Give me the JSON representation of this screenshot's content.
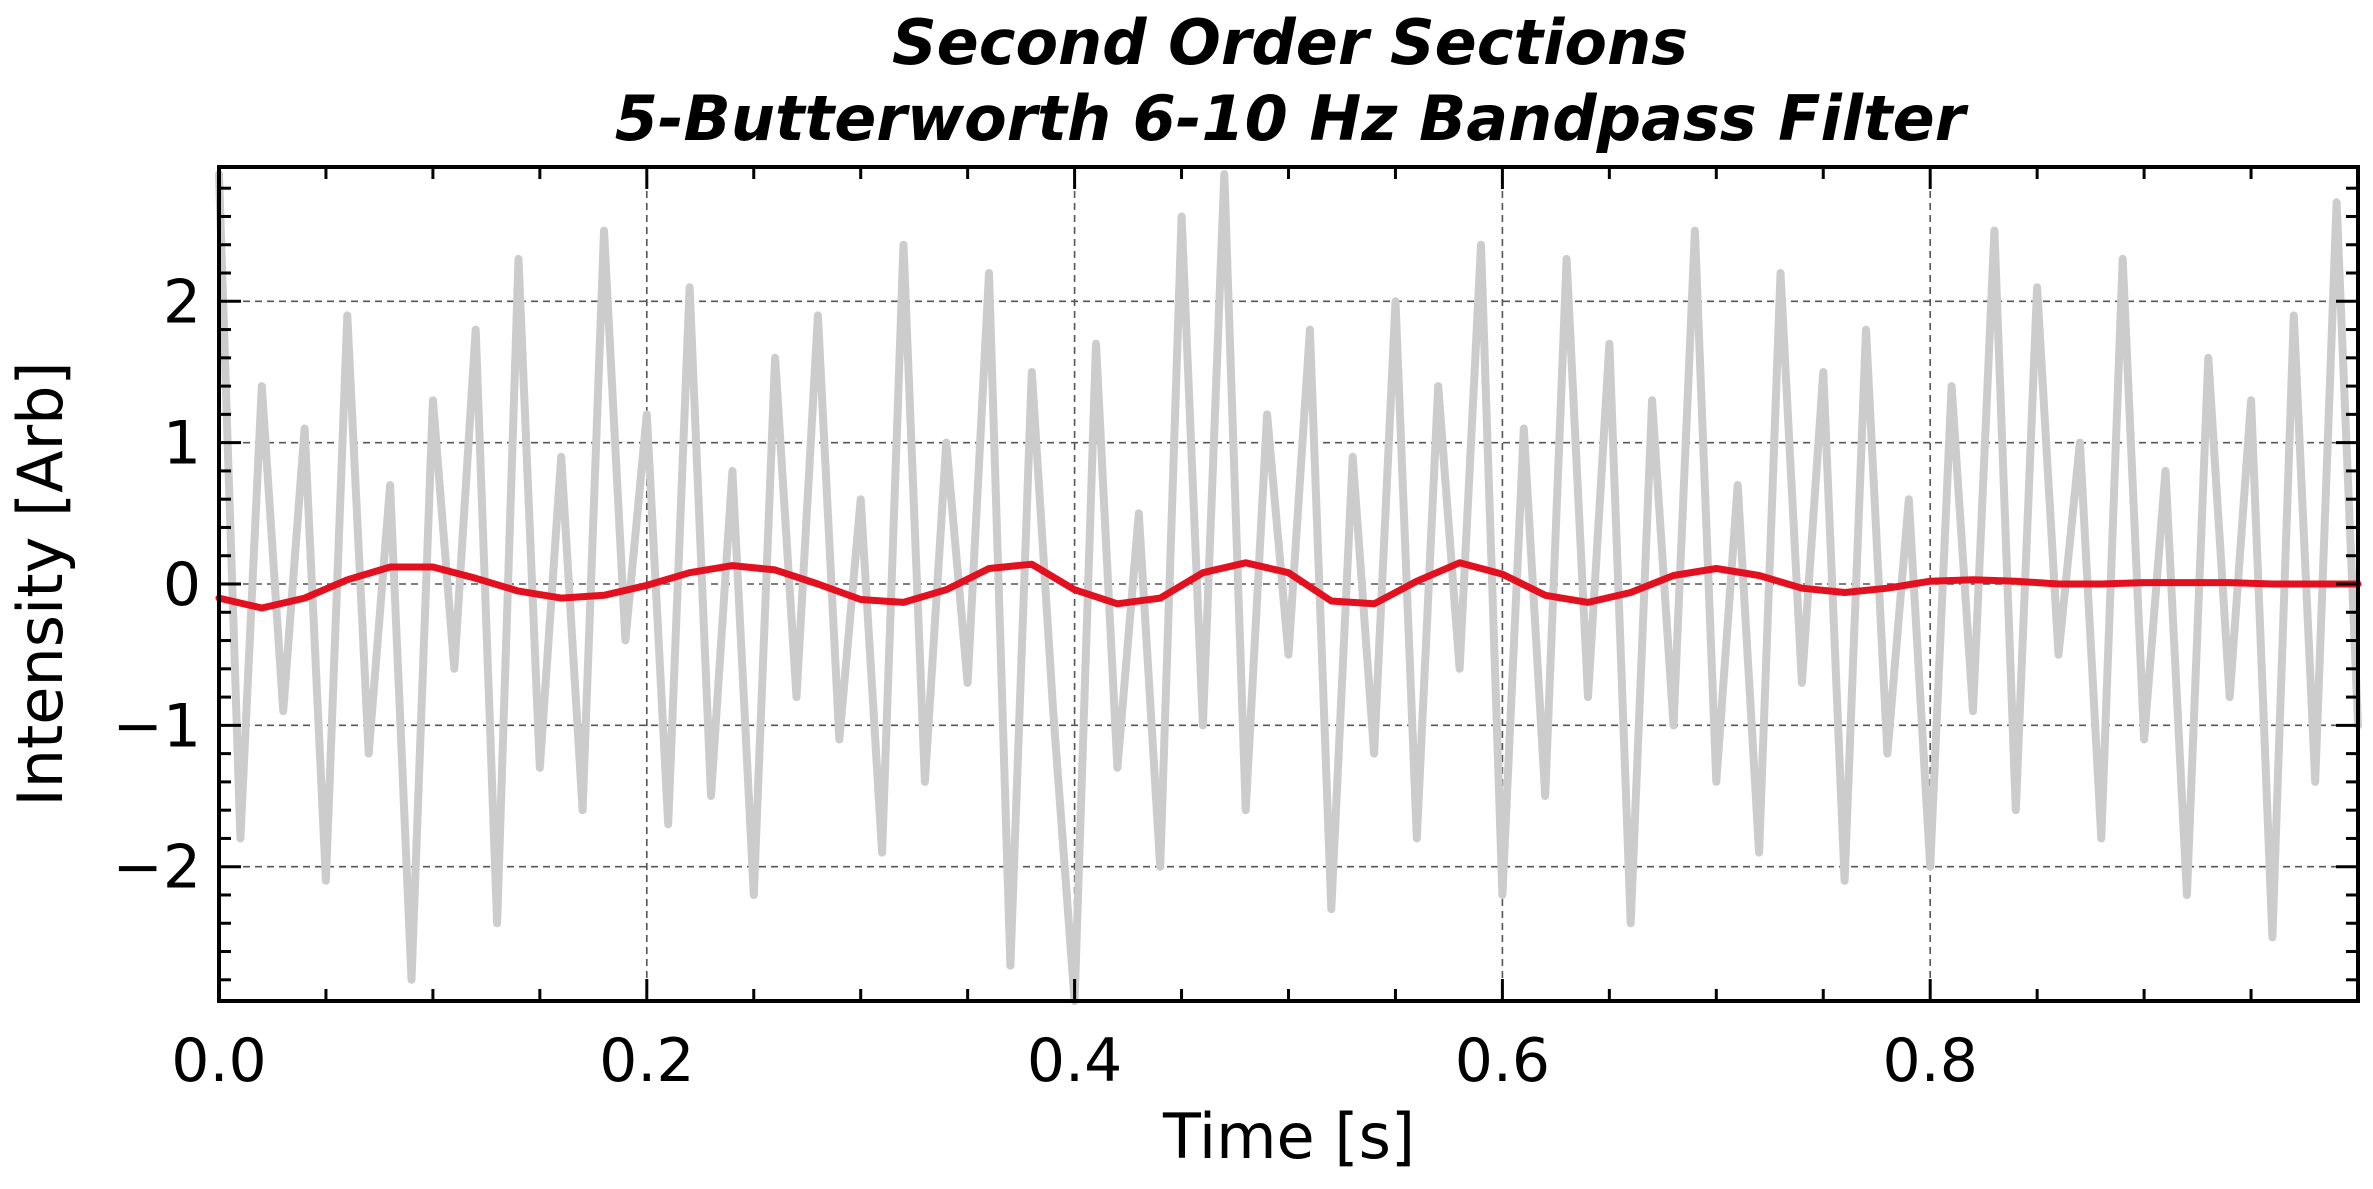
{
  "chart_data": {
    "type": "line",
    "title": "Second Order Sections",
    "subtitle": "5-Butterworth 6-10 Hz Bandpass Filter",
    "xlabel": "Time [s]",
    "ylabel": "Intensity [Arb]",
    "xlim": [
      0.0,
      1.0
    ],
    "ylim": [
      -2.95,
      2.95
    ],
    "x_ticks": [
      0.0,
      0.2,
      0.4,
      0.6,
      0.8
    ],
    "x_tick_labels": [
      "0.0",
      "0.2",
      "0.4",
      "0.6",
      "0.8"
    ],
    "y_ticks": [
      -2,
      -1,
      0,
      1,
      2
    ],
    "y_tick_labels": [
      "−2",
      "−1",
      "0",
      "1",
      "2"
    ],
    "grid": true,
    "legend": "none",
    "series": [
      {
        "color": "#cccccc",
        "x": [
          0.0,
          0.01,
          0.02,
          0.03,
          0.04,
          0.05,
          0.06,
          0.07,
          0.08,
          0.09,
          0.1,
          0.11,
          0.12,
          0.13,
          0.14,
          0.15,
          0.16,
          0.17,
          0.18,
          0.19,
          0.2,
          0.21,
          0.22,
          0.23,
          0.24,
          0.25,
          0.26,
          0.27,
          0.28,
          0.29,
          0.3,
          0.31,
          0.32,
          0.33,
          0.34,
          0.35,
          0.36,
          0.37,
          0.38,
          0.39,
          0.4,
          0.41,
          0.42,
          0.43,
          0.44,
          0.45,
          0.46,
          0.47,
          0.48,
          0.49,
          0.5,
          0.51,
          0.52,
          0.53,
          0.54,
          0.55,
          0.56,
          0.57,
          0.58,
          0.59,
          0.6,
          0.61,
          0.62,
          0.63,
          0.64,
          0.65,
          0.66,
          0.67,
          0.68,
          0.69,
          0.7,
          0.71,
          0.72,
          0.73,
          0.74,
          0.75,
          0.76,
          0.77,
          0.78,
          0.79,
          0.8,
          0.81,
          0.82,
          0.83,
          0.84,
          0.85,
          0.86,
          0.87,
          0.88,
          0.89,
          0.9,
          0.91,
          0.92,
          0.93,
          0.94,
          0.95,
          0.96,
          0.97,
          0.98,
          0.99,
          1.0
        ],
        "values": [
          2.9,
          -1.8,
          1.4,
          -0.9,
          1.1,
          -2.1,
          1.9,
          -1.2,
          0.7,
          -2.8,
          1.3,
          -0.6,
          1.8,
          -2.4,
          2.3,
          -1.3,
          0.9,
          -1.6,
          2.5,
          -0.4,
          1.2,
          -1.7,
          2.1,
          -1.5,
          0.8,
          -2.2,
          1.6,
          -0.8,
          1.9,
          -1.1,
          0.6,
          -1.9,
          2.4,
          -1.4,
          1.0,
          -0.7,
          2.2,
          -2.7,
          1.5,
          -0.9,
          -2.95,
          1.7,
          -1.3,
          0.5,
          -2.0,
          2.6,
          -1.0,
          2.9,
          -1.6,
          1.2,
          -0.5,
          1.8,
          -2.3,
          0.9,
          -1.2,
          2.0,
          -1.8,
          1.4,
          -0.6,
          2.4,
          -2.2,
          1.1,
          -1.5,
          2.3,
          -0.8,
          1.7,
          -2.4,
          1.3,
          -1.0,
          2.5,
          -1.4,
          0.7,
          -1.9,
          2.2,
          -0.7,
          1.5,
          -2.1,
          1.8,
          -1.2,
          0.6,
          -2.0,
          1.4,
          -0.9,
          2.5,
          -1.6,
          2.1,
          -0.5,
          1.0,
          -1.8,
          2.3,
          -1.1,
          0.8,
          -2.2,
          1.6,
          -0.8,
          1.3,
          -2.5,
          1.9,
          -1.4,
          2.7,
          -1.0
        ]
      },
      {
        "color": "#e3101f",
        "x": [
          0.0,
          0.02,
          0.04,
          0.06,
          0.08,
          0.1,
          0.12,
          0.14,
          0.16,
          0.18,
          0.2,
          0.22,
          0.24,
          0.26,
          0.28,
          0.3,
          0.32,
          0.34,
          0.36,
          0.38,
          0.4,
          0.42,
          0.44,
          0.46,
          0.48,
          0.5,
          0.52,
          0.54,
          0.56,
          0.58,
          0.6,
          0.62,
          0.64,
          0.66,
          0.68,
          0.7,
          0.72,
          0.74,
          0.76,
          0.78,
          0.8,
          0.82,
          0.84,
          0.86,
          0.88,
          0.9,
          0.92,
          0.94,
          0.96,
          0.98,
          1.0
        ],
        "values": [
          -0.1,
          -0.17,
          -0.1,
          0.03,
          0.12,
          0.12,
          0.04,
          -0.05,
          -0.1,
          -0.08,
          -0.01,
          0.08,
          0.13,
          0.1,
          0.0,
          -0.11,
          -0.13,
          -0.04,
          0.11,
          0.14,
          -0.04,
          -0.14,
          -0.1,
          0.08,
          0.15,
          0.08,
          -0.12,
          -0.14,
          0.02,
          0.15,
          0.07,
          -0.08,
          -0.13,
          -0.06,
          0.06,
          0.11,
          0.06,
          -0.03,
          -0.06,
          -0.03,
          0.02,
          0.03,
          0.02,
          0.0,
          0.0,
          0.01,
          0.01,
          0.01,
          0.0,
          0.0,
          0.0
        ]
      }
    ]
  }
}
